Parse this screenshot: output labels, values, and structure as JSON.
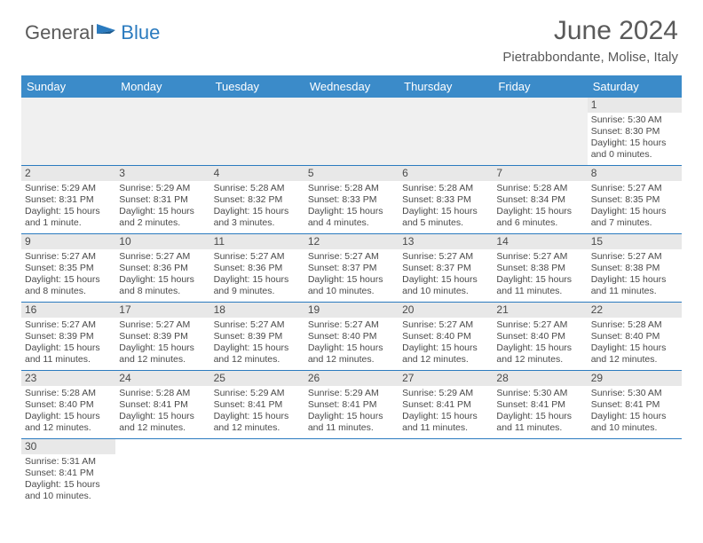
{
  "logo": {
    "text1": "General",
    "text2": "Blue"
  },
  "title": "June 2024",
  "subtitle": "Pietrabbondante, Molise, Italy",
  "colors": {
    "header_bg": "#3b8bc9",
    "header_text": "#ffffff",
    "border": "#2b7bbf",
    "text": "#4a4a4a",
    "daynum_bg": "#e8e8e8",
    "empty_bg": "#f0f0f0"
  },
  "weekdays": [
    "Sunday",
    "Monday",
    "Tuesday",
    "Wednesday",
    "Thursday",
    "Friday",
    "Saturday"
  ],
  "weeks": [
    [
      null,
      null,
      null,
      null,
      null,
      null,
      {
        "n": "1",
        "sr": "Sunrise: 5:30 AM",
        "ss": "Sunset: 8:30 PM",
        "dl": "Daylight: 15 hours and 0 minutes."
      }
    ],
    [
      {
        "n": "2",
        "sr": "Sunrise: 5:29 AM",
        "ss": "Sunset: 8:31 PM",
        "dl": "Daylight: 15 hours and 1 minute."
      },
      {
        "n": "3",
        "sr": "Sunrise: 5:29 AM",
        "ss": "Sunset: 8:31 PM",
        "dl": "Daylight: 15 hours and 2 minutes."
      },
      {
        "n": "4",
        "sr": "Sunrise: 5:28 AM",
        "ss": "Sunset: 8:32 PM",
        "dl": "Daylight: 15 hours and 3 minutes."
      },
      {
        "n": "5",
        "sr": "Sunrise: 5:28 AM",
        "ss": "Sunset: 8:33 PM",
        "dl": "Daylight: 15 hours and 4 minutes."
      },
      {
        "n": "6",
        "sr": "Sunrise: 5:28 AM",
        "ss": "Sunset: 8:33 PM",
        "dl": "Daylight: 15 hours and 5 minutes."
      },
      {
        "n": "7",
        "sr": "Sunrise: 5:28 AM",
        "ss": "Sunset: 8:34 PM",
        "dl": "Daylight: 15 hours and 6 minutes."
      },
      {
        "n": "8",
        "sr": "Sunrise: 5:27 AM",
        "ss": "Sunset: 8:35 PM",
        "dl": "Daylight: 15 hours and 7 minutes."
      }
    ],
    [
      {
        "n": "9",
        "sr": "Sunrise: 5:27 AM",
        "ss": "Sunset: 8:35 PM",
        "dl": "Daylight: 15 hours and 8 minutes."
      },
      {
        "n": "10",
        "sr": "Sunrise: 5:27 AM",
        "ss": "Sunset: 8:36 PM",
        "dl": "Daylight: 15 hours and 8 minutes."
      },
      {
        "n": "11",
        "sr": "Sunrise: 5:27 AM",
        "ss": "Sunset: 8:36 PM",
        "dl": "Daylight: 15 hours and 9 minutes."
      },
      {
        "n": "12",
        "sr": "Sunrise: 5:27 AM",
        "ss": "Sunset: 8:37 PM",
        "dl": "Daylight: 15 hours and 10 minutes."
      },
      {
        "n": "13",
        "sr": "Sunrise: 5:27 AM",
        "ss": "Sunset: 8:37 PM",
        "dl": "Daylight: 15 hours and 10 minutes."
      },
      {
        "n": "14",
        "sr": "Sunrise: 5:27 AM",
        "ss": "Sunset: 8:38 PM",
        "dl": "Daylight: 15 hours and 11 minutes."
      },
      {
        "n": "15",
        "sr": "Sunrise: 5:27 AM",
        "ss": "Sunset: 8:38 PM",
        "dl": "Daylight: 15 hours and 11 minutes."
      }
    ],
    [
      {
        "n": "16",
        "sr": "Sunrise: 5:27 AM",
        "ss": "Sunset: 8:39 PM",
        "dl": "Daylight: 15 hours and 11 minutes."
      },
      {
        "n": "17",
        "sr": "Sunrise: 5:27 AM",
        "ss": "Sunset: 8:39 PM",
        "dl": "Daylight: 15 hours and 12 minutes."
      },
      {
        "n": "18",
        "sr": "Sunrise: 5:27 AM",
        "ss": "Sunset: 8:39 PM",
        "dl": "Daylight: 15 hours and 12 minutes."
      },
      {
        "n": "19",
        "sr": "Sunrise: 5:27 AM",
        "ss": "Sunset: 8:40 PM",
        "dl": "Daylight: 15 hours and 12 minutes."
      },
      {
        "n": "20",
        "sr": "Sunrise: 5:27 AM",
        "ss": "Sunset: 8:40 PM",
        "dl": "Daylight: 15 hours and 12 minutes."
      },
      {
        "n": "21",
        "sr": "Sunrise: 5:27 AM",
        "ss": "Sunset: 8:40 PM",
        "dl": "Daylight: 15 hours and 12 minutes."
      },
      {
        "n": "22",
        "sr": "Sunrise: 5:28 AM",
        "ss": "Sunset: 8:40 PM",
        "dl": "Daylight: 15 hours and 12 minutes."
      }
    ],
    [
      {
        "n": "23",
        "sr": "Sunrise: 5:28 AM",
        "ss": "Sunset: 8:40 PM",
        "dl": "Daylight: 15 hours and 12 minutes."
      },
      {
        "n": "24",
        "sr": "Sunrise: 5:28 AM",
        "ss": "Sunset: 8:41 PM",
        "dl": "Daylight: 15 hours and 12 minutes."
      },
      {
        "n": "25",
        "sr": "Sunrise: 5:29 AM",
        "ss": "Sunset: 8:41 PM",
        "dl": "Daylight: 15 hours and 12 minutes."
      },
      {
        "n": "26",
        "sr": "Sunrise: 5:29 AM",
        "ss": "Sunset: 8:41 PM",
        "dl": "Daylight: 15 hours and 11 minutes."
      },
      {
        "n": "27",
        "sr": "Sunrise: 5:29 AM",
        "ss": "Sunset: 8:41 PM",
        "dl": "Daylight: 15 hours and 11 minutes."
      },
      {
        "n": "28",
        "sr": "Sunrise: 5:30 AM",
        "ss": "Sunset: 8:41 PM",
        "dl": "Daylight: 15 hours and 11 minutes."
      },
      {
        "n": "29",
        "sr": "Sunrise: 5:30 AM",
        "ss": "Sunset: 8:41 PM",
        "dl": "Daylight: 15 hours and 10 minutes."
      }
    ],
    [
      {
        "n": "30",
        "sr": "Sunrise: 5:31 AM",
        "ss": "Sunset: 8:41 PM",
        "dl": "Daylight: 15 hours and 10 minutes."
      },
      null,
      null,
      null,
      null,
      null,
      null
    ]
  ]
}
